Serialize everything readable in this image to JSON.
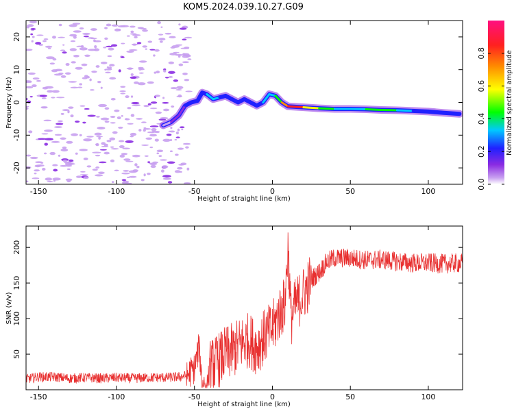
{
  "title": "KOM5.2024.039.10.27.G09",
  "colors": {
    "snr_line": "#e83030",
    "axes": "#000000",
    "scatter_noise": "#c8a0f0"
  },
  "chart_data": [
    {
      "type": "heatmap",
      "xlabel": "Height of straight line (km)",
      "ylabel": "Frequency (Hz)",
      "xlim": [
        -158,
        122
      ],
      "ylim": [
        -25,
        25
      ],
      "x_ticks": [
        -150,
        -100,
        -50,
        0,
        50,
        100
      ],
      "y_ticks": [
        -20,
        -10,
        0,
        10,
        20
      ],
      "colorbar": {
        "label": "Normalized spectral amplitude",
        "range": [
          0,
          1
        ],
        "ticks": [
          0.0,
          0.2,
          0.4,
          0.6,
          0.8
        ],
        "colormap": "rainbow"
      },
      "trace": {
        "x": [
          -70,
          -65,
          -60,
          -56,
          -52,
          -48,
          -45,
          -42,
          -38,
          -34,
          -30,
          -26,
          -22,
          -18,
          -14,
          -10,
          -6,
          -2,
          2,
          6,
          10,
          20,
          30,
          40,
          50,
          60,
          70,
          80,
          90,
          100,
          110,
          120
        ],
        "y": [
          -7,
          -6,
          -4,
          -1,
          0,
          0.5,
          3,
          2.5,
          1,
          1.5,
          2,
          1,
          0,
          1,
          0,
          -1,
          0,
          2.5,
          2,
          0,
          -1.2,
          -1.5,
          -1.8,
          -2,
          -2,
          -2.1,
          -2.3,
          -2.4,
          -2.6,
          -2.8,
          -3.2,
          -3.5
        ],
        "amplitude": [
          0.1,
          0.1,
          0.15,
          0.2,
          0.25,
          0.3,
          0.35,
          0.3,
          0.4,
          0.3,
          0.35,
          0.3,
          0.25,
          0.3,
          0.3,
          0.3,
          0.35,
          0.4,
          0.4,
          0.6,
          0.9,
          0.85,
          0.5,
          0.45,
          0.4,
          0.35,
          0.6,
          0.5,
          0.35,
          0.3,
          0.3,
          0.3
        ]
      }
    },
    {
      "type": "line",
      "xlabel": "Height of straight line (km)",
      "ylabel": "SNR (v/v)",
      "xlim": [
        -158,
        122
      ],
      "ylim": [
        0,
        230
      ],
      "x_ticks": [
        -150,
        -100,
        -50,
        0,
        50,
        100
      ],
      "y_ticks": [
        50,
        100,
        150,
        200
      ],
      "series": [
        {
          "x": [
            -158,
            -150,
            -140,
            -130,
            -120,
            -110,
            -100,
            -90,
            -80,
            -70,
            -60,
            -55,
            -50,
            -47,
            -45,
            -42,
            -40,
            -35,
            -30,
            -25,
            -20,
            -15,
            -10,
            -5,
            0,
            5,
            8,
            10,
            12,
            15,
            20,
            25,
            30,
            35,
            40,
            50,
            60,
            70,
            80,
            90,
            100,
            110,
            122
          ],
          "values": [
            15,
            18,
            18,
            16,
            17,
            16,
            17,
            16,
            17,
            17,
            18,
            20,
            30,
            60,
            10,
            8,
            30,
            40,
            50,
            55,
            65,
            70,
            60,
            75,
            85,
            110,
            120,
            200,
            100,
            120,
            135,
            155,
            165,
            180,
            185,
            185,
            182,
            183,
            180,
            178,
            178,
            177,
            178
          ]
        }
      ]
    }
  ]
}
